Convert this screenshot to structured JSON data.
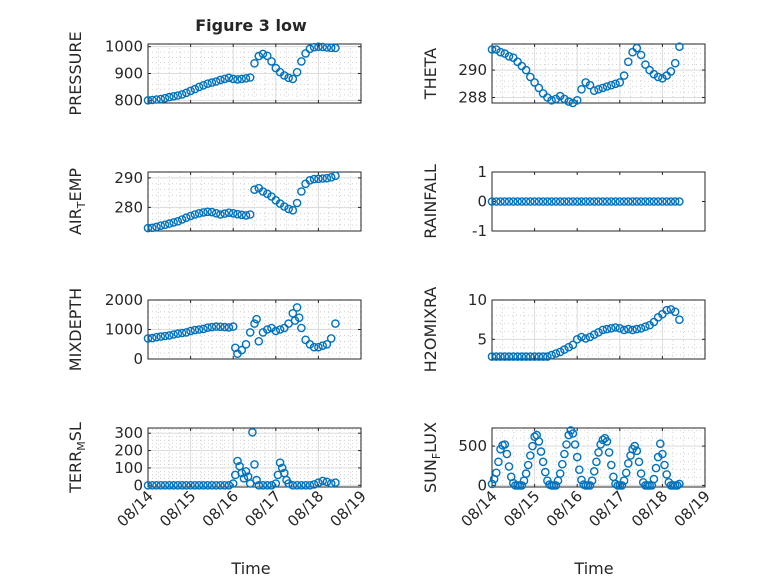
{
  "figure": {
    "title": "Figure 3 low",
    "marker_color": "#0072BD",
    "x_tick_labels": [
      "08/14",
      "08/15",
      "08/16",
      "08/17",
      "08/18",
      "08/19"
    ],
    "x_label": "Time"
  },
  "chart_data": [
    {
      "type": "scatter",
      "title": "Figure 3 low",
      "ylabel": "PRESSURE",
      "ylim": [
        790,
        1010
      ],
      "yticks": [
        800,
        900,
        1000
      ],
      "ytick_labels": [
        "800",
        "900",
        "1000"
      ],
      "xlim": [
        0,
        5
      ],
      "grid": true,
      "x": [
        0.0,
        0.1,
        0.2,
        0.3,
        0.4,
        0.5,
        0.6,
        0.7,
        0.8,
        0.9,
        1.0,
        1.1,
        1.2,
        1.3,
        1.4,
        1.5,
        1.6,
        1.7,
        1.8,
        1.9,
        2.0,
        2.1,
        2.2,
        2.3,
        2.4,
        2.5,
        2.6,
        2.7,
        2.8,
        2.9,
        3.0,
        3.1,
        3.2,
        3.3,
        3.4,
        3.5,
        3.6,
        3.7,
        3.8,
        3.9,
        4.0,
        4.1,
        4.2,
        4.3,
        4.4
      ],
      "y": [
        800,
        801,
        803,
        805,
        808,
        812,
        815,
        818,
        822,
        828,
        835,
        842,
        850,
        856,
        862,
        866,
        870,
        876,
        880,
        884,
        880,
        878,
        880,
        882,
        885,
        938,
        965,
        973,
        966,
        945,
        920,
        905,
        893,
        884,
        880,
        905,
        945,
        975,
        992,
        998,
        1000,
        999,
        997,
        996,
        995
      ]
    },
    {
      "type": "scatter",
      "ylabel": "THETA",
      "ylim": [
        287.6,
        291.9
      ],
      "yticks": [
        288,
        290
      ],
      "ytick_labels": [
        "288",
        "290"
      ],
      "xlim": [
        0,
        5
      ],
      "grid": true,
      "x": [
        0.0,
        0.1,
        0.2,
        0.3,
        0.4,
        0.5,
        0.6,
        0.7,
        0.8,
        0.9,
        1.0,
        1.1,
        1.2,
        1.3,
        1.4,
        1.5,
        1.6,
        1.7,
        1.8,
        1.9,
        2.0,
        2.1,
        2.2,
        2.3,
        2.4,
        2.5,
        2.6,
        2.7,
        2.8,
        2.9,
        3.0,
        3.1,
        3.2,
        3.3,
        3.4,
        3.5,
        3.6,
        3.7,
        3.8,
        3.9,
        4.0,
        4.1,
        4.2,
        4.3,
        4.4
      ],
      "y": [
        291.5,
        291.5,
        291.3,
        291.2,
        291.0,
        290.9,
        290.6,
        290.3,
        290.0,
        289.5,
        289.1,
        288.7,
        288.3,
        288.0,
        287.8,
        287.9,
        288.1,
        287.9,
        287.7,
        287.6,
        287.8,
        288.6,
        289.1,
        288.9,
        288.5,
        288.6,
        288.7,
        288.8,
        288.9,
        289.0,
        289.1,
        289.6,
        290.6,
        291.3,
        291.6,
        291.1,
        290.4,
        290.0,
        289.7,
        289.5,
        289.4,
        289.6,
        289.9,
        290.5,
        291.7
      ]
    },
    {
      "type": "scatter",
      "ylabel": "AIR_TEMP",
      "ylim": [
        272,
        292
      ],
      "yticks": [
        280,
        290
      ],
      "ytick_labels": [
        "280",
        "290"
      ],
      "xlim": [
        0,
        5
      ],
      "grid": true,
      "x": [
        0.0,
        0.1,
        0.2,
        0.3,
        0.4,
        0.5,
        0.6,
        0.7,
        0.8,
        0.9,
        1.0,
        1.1,
        1.2,
        1.3,
        1.4,
        1.5,
        1.6,
        1.7,
        1.8,
        1.9,
        2.0,
        2.1,
        2.2,
        2.3,
        2.4,
        2.5,
        2.6,
        2.7,
        2.8,
        2.9,
        3.0,
        3.1,
        3.2,
        3.3,
        3.4,
        3.5,
        3.6,
        3.7,
        3.8,
        3.9,
        4.0,
        4.1,
        4.2,
        4.3,
        4.4
      ],
      "y": [
        273.0,
        273.1,
        273.4,
        273.8,
        274.1,
        274.5,
        274.9,
        275.3,
        275.9,
        276.5,
        277.1,
        277.6,
        278.0,
        278.3,
        278.5,
        278.4,
        278.0,
        277.6,
        277.9,
        278.2,
        278.0,
        277.7,
        277.5,
        277.3,
        277.6,
        286.0,
        286.5,
        285.4,
        284.6,
        283.7,
        282.4,
        281.3,
        280.3,
        279.5,
        279.0,
        281.5,
        285.4,
        288.0,
        289.2,
        289.6,
        289.7,
        289.8,
        289.9,
        290.2,
        290.7
      ]
    },
    {
      "type": "scatter",
      "ylabel": "RAINFALL",
      "ylim": [
        -1,
        1
      ],
      "yticks": [
        -1,
        0,
        1
      ],
      "ytick_labels": [
        "-1",
        "0",
        "1"
      ],
      "xlim": [
        0,
        5
      ],
      "grid": false,
      "x": [
        0.0,
        0.1,
        0.2,
        0.3,
        0.4,
        0.5,
        0.6,
        0.7,
        0.8,
        0.9,
        1.0,
        1.1,
        1.2,
        1.3,
        1.4,
        1.5,
        1.6,
        1.7,
        1.8,
        1.9,
        2.0,
        2.1,
        2.2,
        2.3,
        2.4,
        2.5,
        2.6,
        2.7,
        2.8,
        2.9,
        3.0,
        3.1,
        3.2,
        3.3,
        3.4,
        3.5,
        3.6,
        3.7,
        3.8,
        3.9,
        4.0,
        4.1,
        4.2,
        4.3,
        4.4
      ],
      "y": [
        0,
        0,
        0,
        0,
        0,
        0,
        0,
        0,
        0,
        0,
        0,
        0,
        0,
        0,
        0,
        0,
        0,
        0,
        0,
        0,
        0,
        0,
        0,
        0,
        0,
        0,
        0,
        0,
        0,
        0,
        0,
        0,
        0,
        0,
        0,
        0,
        0,
        0,
        0,
        0,
        0,
        0,
        0,
        0,
        0
      ]
    },
    {
      "type": "scatter",
      "ylabel": "MIXDEPTH",
      "ylim": [
        0,
        2000
      ],
      "yticks": [
        0,
        1000,
        2000
      ],
      "ytick_labels": [
        "0",
        "1000",
        "2000"
      ],
      "xlim": [
        0,
        5
      ],
      "grid": true,
      "x": [
        0.0,
        0.1,
        0.2,
        0.3,
        0.4,
        0.5,
        0.6,
        0.7,
        0.8,
        0.9,
        1.0,
        1.1,
        1.2,
        1.3,
        1.4,
        1.5,
        1.6,
        1.7,
        1.8,
        1.9,
        2.0,
        2.05,
        2.1,
        2.2,
        2.3,
        2.4,
        2.5,
        2.55,
        2.6,
        2.7,
        2.8,
        2.9,
        3.0,
        3.1,
        3.2,
        3.3,
        3.4,
        3.45,
        3.5,
        3.55,
        3.6,
        3.7,
        3.8,
        3.9,
        4.0,
        4.1,
        4.2,
        4.3,
        4.4
      ],
      "y": [
        700,
        710,
        740,
        760,
        780,
        800,
        830,
        860,
        880,
        900,
        950,
        980,
        1000,
        1020,
        1060,
        1080,
        1100,
        1090,
        1080,
        1070,
        1100,
        380,
        180,
        300,
        500,
        900,
        1200,
        1350,
        600,
        900,
        1000,
        1050,
        950,
        1000,
        1050,
        1200,
        1550,
        1300,
        1750,
        1400,
        1050,
        650,
        500,
        400,
        400,
        450,
        500,
        700,
        1200
      ]
    },
    {
      "type": "scatter",
      "ylabel": "H2OMIXRA",
      "ylim": [
        2.5,
        10
      ],
      "yticks": [
        5,
        10
      ],
      "ytick_labels": [
        "5",
        "10"
      ],
      "xlim": [
        0,
        5
      ],
      "grid": true,
      "x": [
        0.0,
        0.1,
        0.2,
        0.3,
        0.4,
        0.5,
        0.6,
        0.7,
        0.8,
        0.9,
        1.0,
        1.1,
        1.2,
        1.3,
        1.4,
        1.5,
        1.6,
        1.7,
        1.8,
        1.9,
        2.0,
        2.1,
        2.2,
        2.3,
        2.4,
        2.5,
        2.6,
        2.7,
        2.8,
        2.9,
        3.0,
        3.1,
        3.2,
        3.3,
        3.4,
        3.5,
        3.6,
        3.7,
        3.8,
        3.9,
        4.0,
        4.1,
        4.2,
        4.3,
        4.4
      ],
      "y": [
        2.8,
        2.8,
        2.8,
        2.8,
        2.8,
        2.8,
        2.8,
        2.8,
        2.8,
        2.8,
        2.8,
        2.8,
        2.8,
        2.8,
        3.0,
        3.2,
        3.4,
        3.7,
        4.0,
        4.3,
        5.0,
        5.3,
        5.1,
        5.3,
        5.6,
        5.9,
        6.2,
        6.3,
        6.4,
        6.5,
        6.4,
        6.2,
        6.3,
        6.2,
        6.3,
        6.4,
        6.6,
        6.8,
        7.2,
        7.8,
        8.2,
        8.7,
        8.8,
        8.5,
        7.5
      ]
    },
    {
      "type": "scatter",
      "ylabel": "TERR_MSL",
      "ylim": [
        -10,
        330
      ],
      "yticks": [
        0,
        100,
        200,
        300
      ],
      "ytick_labels": [
        "0",
        "100",
        "200",
        "300"
      ],
      "xlim": [
        0,
        5
      ],
      "grid": true,
      "x": [
        0.0,
        0.1,
        0.2,
        0.3,
        0.4,
        0.5,
        0.6,
        0.7,
        0.8,
        0.9,
        1.0,
        1.1,
        1.2,
        1.3,
        1.4,
        1.5,
        1.6,
        1.7,
        1.8,
        1.9,
        2.0,
        2.05,
        2.1,
        2.15,
        2.2,
        2.25,
        2.3,
        2.35,
        2.4,
        2.45,
        2.5,
        2.55,
        2.6,
        2.7,
        2.8,
        2.9,
        3.0,
        3.05,
        3.1,
        3.15,
        3.2,
        3.25,
        3.3,
        3.4,
        3.5,
        3.6,
        3.7,
        3.8,
        3.9,
        4.0,
        4.1,
        4.2,
        4.3,
        4.4
      ],
      "y": [
        0,
        0,
        0,
        0,
        0,
        0,
        0,
        0,
        0,
        0,
        0,
        0,
        0,
        0,
        0,
        0,
        0,
        0,
        0,
        0,
        10,
        60,
        140,
        110,
        70,
        40,
        80,
        50,
        10,
        305,
        120,
        30,
        0,
        0,
        0,
        0,
        10,
        60,
        130,
        100,
        70,
        30,
        10,
        0,
        0,
        0,
        0,
        0,
        5,
        15,
        25,
        20,
        10,
        15
      ]
    },
    {
      "type": "scatter",
      "ylabel": "SUN_FLUX",
      "ylim": [
        -20,
        730
      ],
      "yticks": [
        0,
        500
      ],
      "ytick_labels": [
        "0",
        "500"
      ],
      "xlim": [
        0,
        5
      ],
      "grid": true,
      "x": [
        0.0,
        0.05,
        0.1,
        0.15,
        0.2,
        0.25,
        0.3,
        0.35,
        0.4,
        0.45,
        0.5,
        0.55,
        0.6,
        0.65,
        0.7,
        0.75,
        0.8,
        0.85,
        0.9,
        0.95,
        1.0,
        1.05,
        1.1,
        1.15,
        1.2,
        1.25,
        1.3,
        1.35,
        1.4,
        1.45,
        1.5,
        1.55,
        1.6,
        1.65,
        1.7,
        1.75,
        1.8,
        1.85,
        1.9,
        1.95,
        2.0,
        2.05,
        2.1,
        2.15,
        2.2,
        2.25,
        2.3,
        2.35,
        2.4,
        2.45,
        2.5,
        2.55,
        2.6,
        2.65,
        2.7,
        2.75,
        2.8,
        2.85,
        2.9,
        2.95,
        3.0,
        3.05,
        3.1,
        3.15,
        3.2,
        3.25,
        3.3,
        3.35,
        3.4,
        3.45,
        3.5,
        3.55,
        3.6,
        3.65,
        3.7,
        3.75,
        3.8,
        3.85,
        3.9,
        3.95,
        4.0,
        4.05,
        4.1,
        4.15,
        4.2,
        4.25,
        4.3,
        4.35,
        4.4
      ],
      "y": [
        20,
        80,
        160,
        300,
        460,
        510,
        520,
        400,
        240,
        110,
        30,
        0,
        0,
        0,
        0,
        60,
        150,
        260,
        380,
        500,
        620,
        640,
        560,
        430,
        300,
        170,
        60,
        10,
        0,
        0,
        0,
        60,
        150,
        270,
        400,
        520,
        640,
        700,
        660,
        520,
        360,
        200,
        70,
        10,
        0,
        0,
        0,
        60,
        180,
        300,
        420,
        520,
        580,
        600,
        560,
        420,
        260,
        110,
        20,
        0,
        0,
        0,
        60,
        160,
        280,
        380,
        460,
        500,
        440,
        300,
        150,
        40,
        0,
        0,
        0,
        0,
        80,
        220,
        360,
        530,
        400,
        260,
        140,
        40,
        0,
        0,
        0,
        0,
        20
      ]
    }
  ]
}
